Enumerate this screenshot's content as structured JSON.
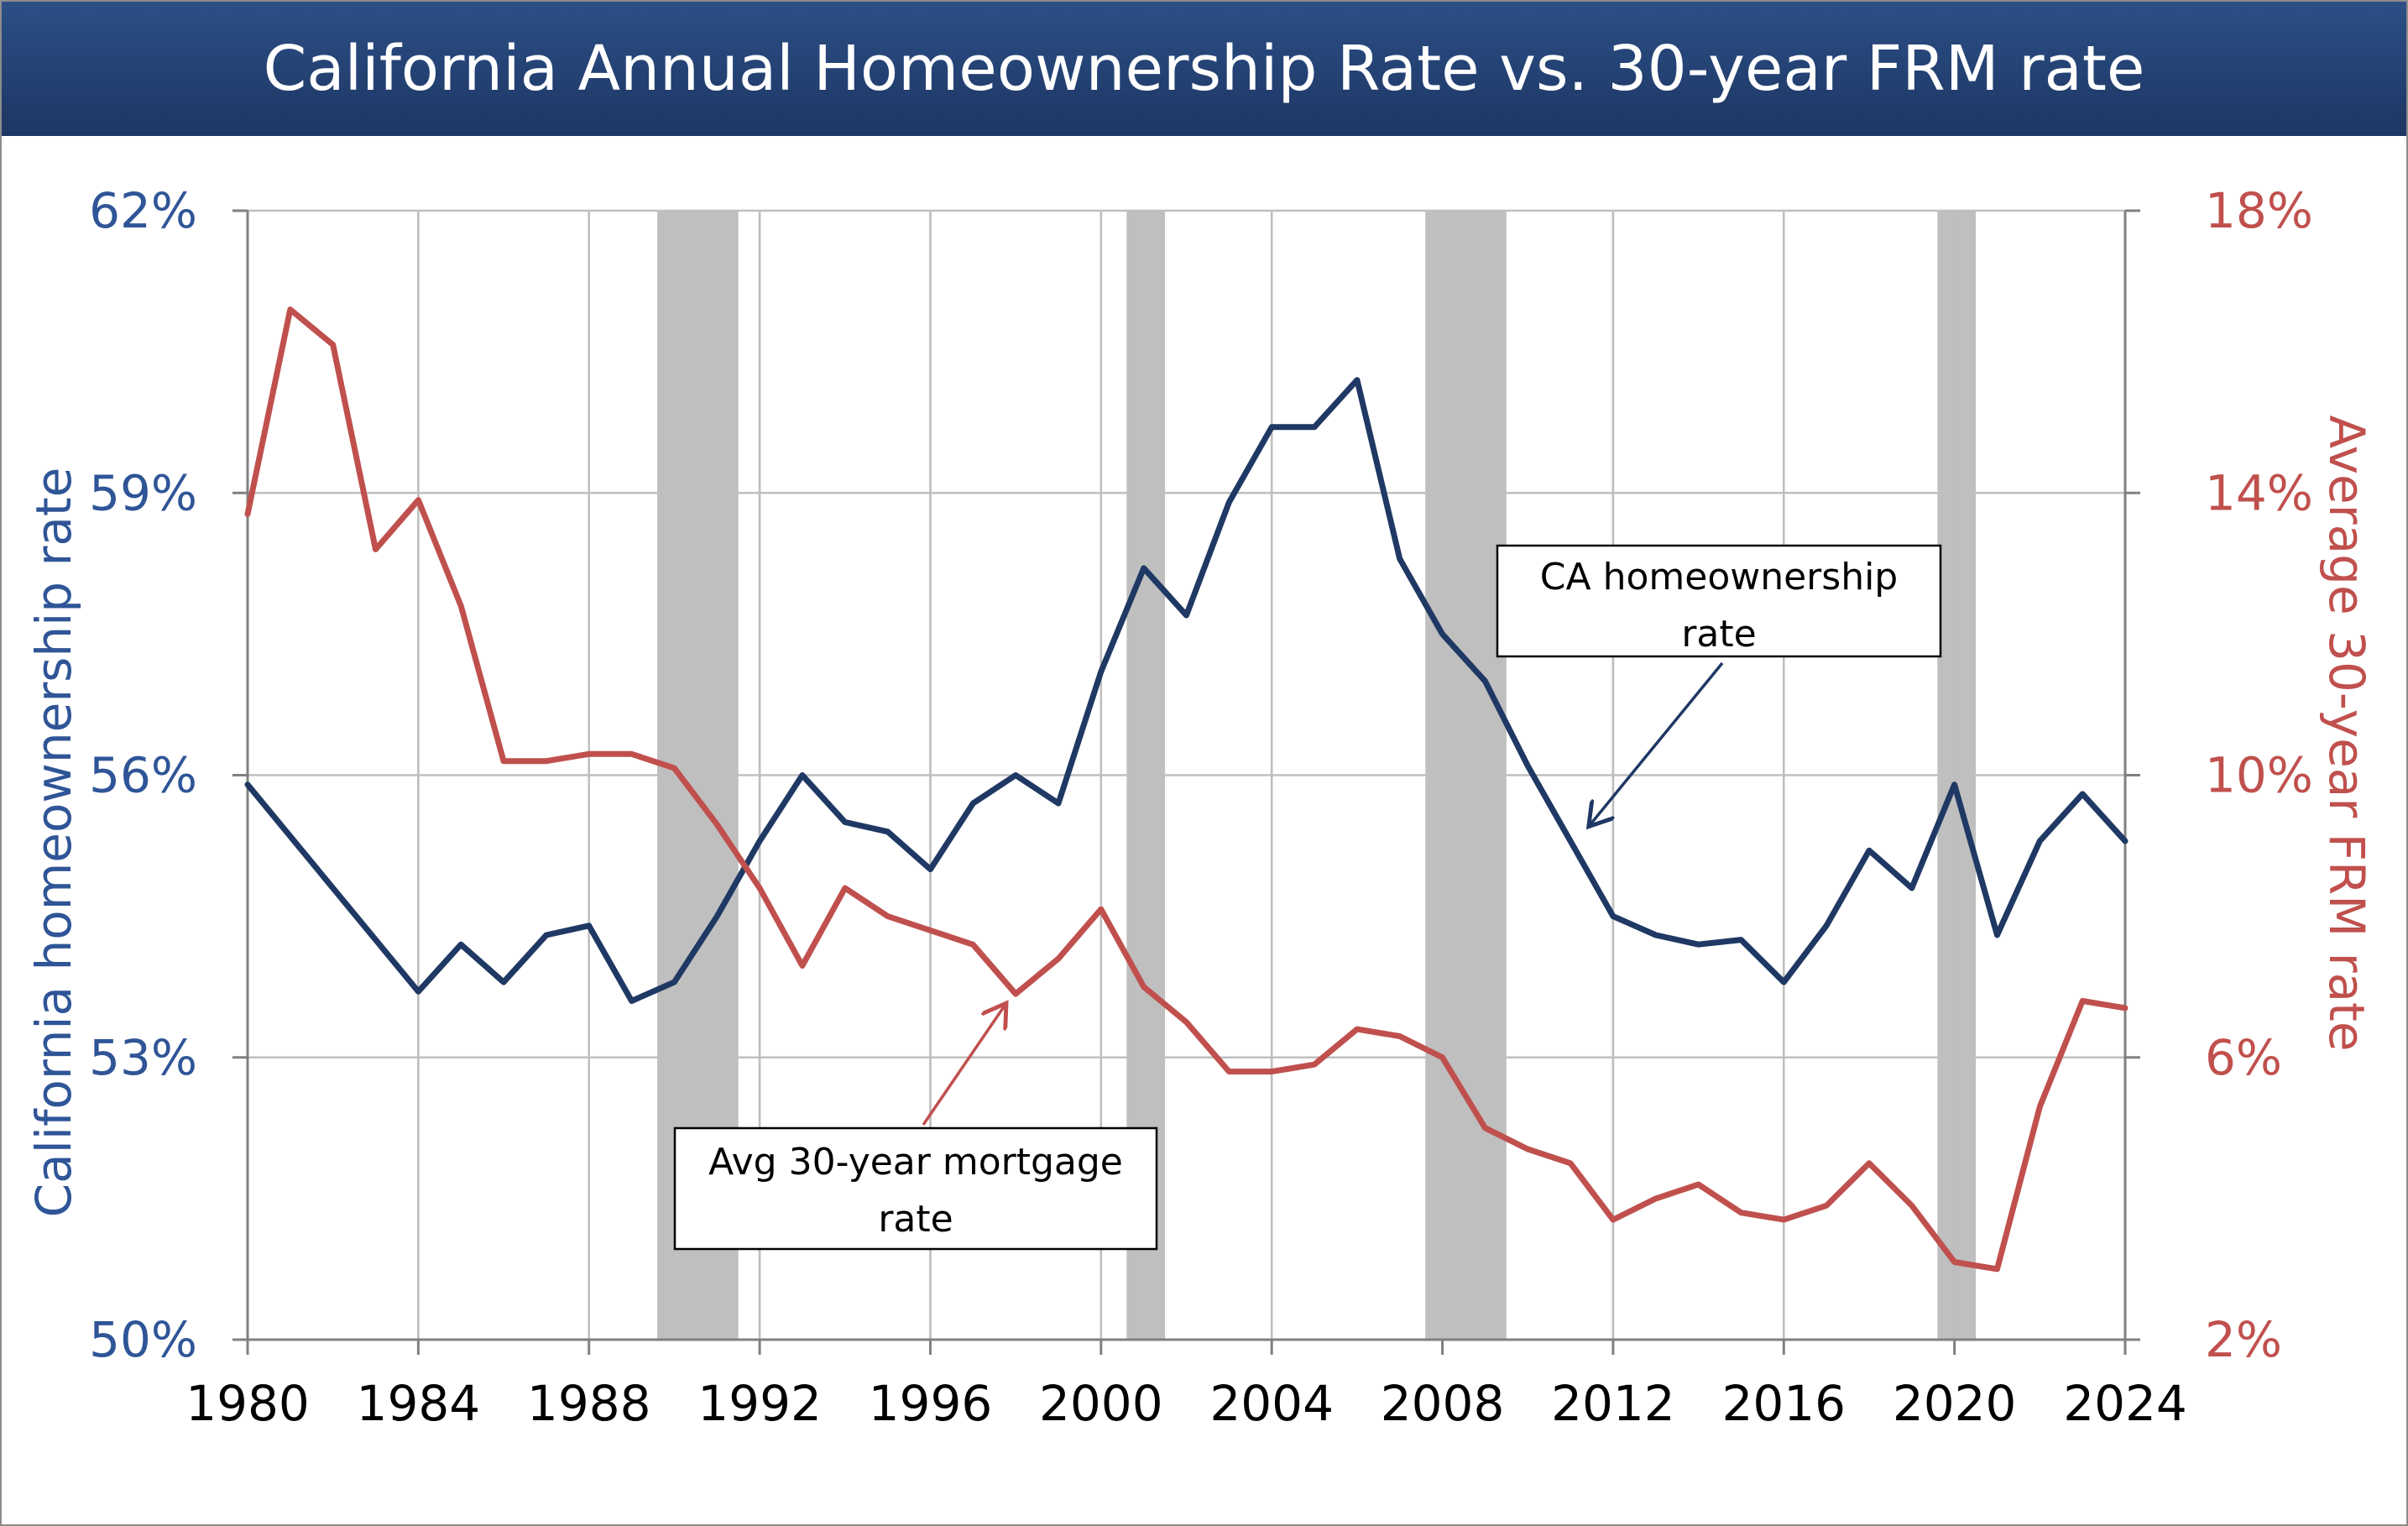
{
  "title": "California Annual Homeownership Rate vs. 30-year FRM rate",
  "colors": {
    "homeownership": "#1f3864",
    "mortgage": "#c0504d",
    "left_axis_text": "#2f5597",
    "right_axis_text": "#c0504d",
    "recession": "#bfbfbf",
    "grid": "#bfbfbf"
  },
  "chart_data": {
    "type": "line",
    "x_label": "",
    "y_left_label": "California homeownership rate",
    "y_right_label": "Average 30-year FRM rate",
    "x_range": [
      1980,
      2024
    ],
    "x_ticks": [
      "1980",
      "1984",
      "1988",
      "1992",
      "1996",
      "2000",
      "2004",
      "2008",
      "2012",
      "2016",
      "2020",
      "2024"
    ],
    "y_left_range": [
      50,
      62
    ],
    "y_left_ticks": [
      "50%",
      "53%",
      "56%",
      "59%",
      "62%"
    ],
    "y_right_range": [
      2,
      18
    ],
    "y_right_ticks": [
      "2%",
      "6%",
      "10%",
      "14%",
      "18%"
    ],
    "grid": true,
    "recessions": [
      [
        1989.6,
        1991.5
      ],
      [
        2000.6,
        2001.5
      ],
      [
        2007.6,
        2009.5
      ],
      [
        2019.6,
        2020.5
      ]
    ],
    "series": [
      {
        "name": "CA homeownership rate",
        "axis": "left",
        "x": [
          1980,
          1984,
          1985,
          1986,
          1987,
          1988,
          1989,
          1990,
          1991,
          1992,
          1993,
          1994,
          1995,
          1996,
          1997,
          1998,
          1999,
          2000,
          2001,
          2002,
          2003,
          2004,
          2005,
          2006,
          2007,
          2008,
          2009,
          2010,
          2011,
          2012,
          2013,
          2014,
          2015,
          2016,
          2017,
          2018,
          2019,
          2020,
          2021,
          2022,
          2023,
          2024
        ],
        "values": [
          55.9,
          53.7,
          54.2,
          53.8,
          54.3,
          54.4,
          53.6,
          53.8,
          54.5,
          55.3,
          56.0,
          55.5,
          55.4,
          55.0,
          55.7,
          56.0,
          55.7,
          57.1,
          58.2,
          57.7,
          58.9,
          59.7,
          59.7,
          60.2,
          58.3,
          57.5,
          57.0,
          56.1,
          55.3,
          54.5,
          54.3,
          54.2,
          54.25,
          53.8,
          54.4,
          55.2,
          54.8,
          55.9,
          54.3,
          55.3,
          55.8,
          55.3
        ]
      },
      {
        "name": "Avg 30-year mortgage rate",
        "axis": "right",
        "x": [
          1980,
          1981,
          1982,
          1983,
          1984,
          1985,
          1986,
          1987,
          1988,
          1989,
          1990,
          1991,
          1992,
          1993,
          1994,
          1995,
          1996,
          1997,
          1998,
          1999,
          2000,
          2001,
          2002,
          2003,
          2004,
          2005,
          2006,
          2007,
          2008,
          2009,
          2010,
          2011,
          2012,
          2013,
          2014,
          2015,
          2016,
          2017,
          2018,
          2019,
          2020,
          2021,
          2022,
          2023,
          2024
        ],
        "values": [
          13.7,
          16.6,
          16.1,
          13.2,
          13.9,
          12.4,
          10.2,
          10.2,
          10.3,
          10.3,
          10.1,
          9.3,
          8.4,
          7.3,
          8.4,
          8.0,
          7.8,
          7.6,
          6.9,
          7.4,
          8.1,
          7.0,
          6.5,
          5.8,
          5.8,
          5.9,
          6.4,
          6.3,
          6.0,
          5.0,
          4.7,
          4.5,
          3.7,
          4.0,
          4.2,
          3.8,
          3.7,
          3.9,
          4.5,
          3.9,
          3.1,
          3.0,
          5.3,
          6.8,
          6.7
        ]
      }
    ],
    "annotations": [
      {
        "id": "homeownership",
        "line1": "CA homeownership rate",
        "line2": ""
      },
      {
        "id": "mortgage",
        "line1": "Avg 30-year mortgage",
        "line2": "rate"
      }
    ]
  }
}
